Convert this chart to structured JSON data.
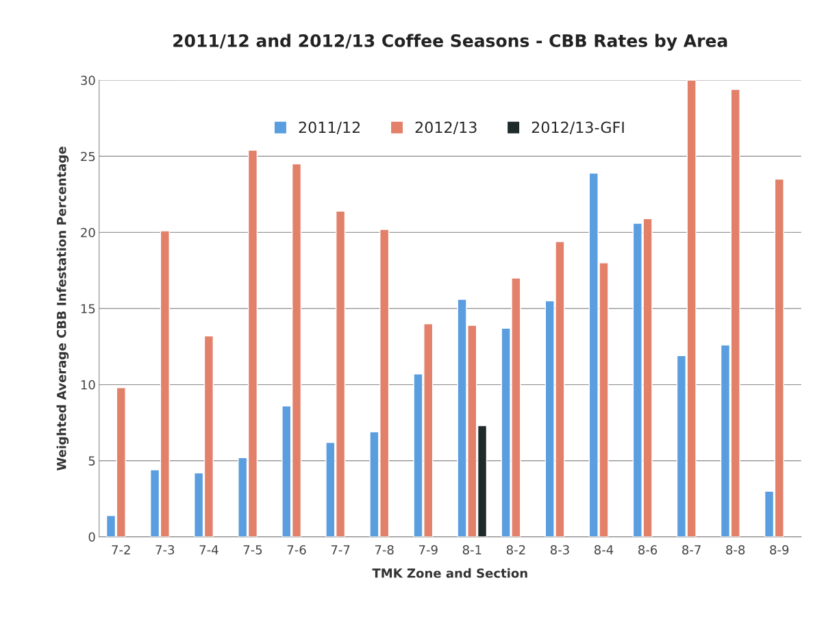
{
  "chart_data": {
    "type": "bar",
    "title": "2011/12 and 2012/13 Coffee Seasons - CBB Rates by Area",
    "xlabel": "TMK Zone and Section",
    "ylabel": "Weighted Average CBB Infestation Percentage",
    "categories": [
      "7-2",
      "7-3",
      "7-4",
      "7-5",
      "7-6",
      "7-7",
      "7-8",
      "7-9",
      "8-1",
      "8-2",
      "8-3",
      "8-4",
      "8-6",
      "8-7",
      "8-8",
      "8-9"
    ],
    "series": [
      {
        "name": "2011/12",
        "color": "#5a9ee0",
        "values": [
          1.4,
          4.4,
          4.2,
          5.2,
          8.6,
          6.2,
          6.9,
          10.7,
          15.6,
          13.7,
          15.5,
          23.9,
          20.6,
          11.9,
          12.6,
          3.0
        ]
      },
      {
        "name": "2012/13",
        "color": "#e2806a",
        "values": [
          9.8,
          20.1,
          13.2,
          25.4,
          24.5,
          21.4,
          20.2,
          14.0,
          13.9,
          17.0,
          19.4,
          18.0,
          20.9,
          30.0,
          29.4,
          23.5
        ]
      },
      {
        "name": "2012/13-GFI",
        "color": "#1f2b2b",
        "values": [
          null,
          null,
          null,
          null,
          null,
          null,
          null,
          null,
          7.3,
          null,
          null,
          null,
          null,
          null,
          null,
          null
        ]
      }
    ],
    "ylim": [
      0,
      30
    ],
    "yticks": [
      0,
      5,
      10,
      15,
      20,
      25,
      30
    ],
    "grid": "y",
    "legend": "top"
  }
}
